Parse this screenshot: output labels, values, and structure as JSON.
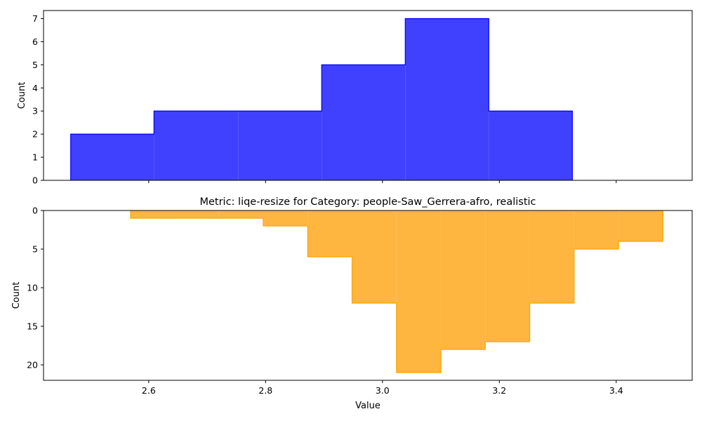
{
  "chart_data": [
    {
      "type": "histogram",
      "title": "",
      "xlabel": "",
      "ylabel": "Count",
      "xlim": [
        2.42,
        3.53
      ],
      "ylim": [
        0,
        7.35
      ],
      "x_inverted": false,
      "y_inverted": false,
      "show_x_tick_labels": false,
      "color": "#0000ff",
      "fill_color": "#4040ff",
      "xticks": [
        2.6,
        2.8,
        3.0,
        3.2,
        3.4
      ],
      "yticks": [
        0,
        1,
        2,
        3,
        4,
        5,
        6,
        7
      ],
      "ytick_labels": [
        "0",
        "1",
        "2",
        "3",
        "4",
        "5",
        "6",
        "7"
      ],
      "bin_edges": [
        2.4665,
        2.609,
        2.753,
        2.896,
        3.039,
        3.182,
        3.325
      ],
      "counts": [
        2,
        3,
        3,
        5,
        7,
        3
      ]
    },
    {
      "type": "histogram",
      "title": "Metric: liqe-resize for Category: people-Saw_Gerrera-afro, realistic",
      "xlabel": "Value",
      "ylabel": "Count",
      "xlim": [
        2.42,
        3.53
      ],
      "ylim": [
        0,
        22
      ],
      "x_inverted": false,
      "y_inverted": true,
      "show_x_tick_labels": true,
      "color": "#ffa500",
      "fill_color": "#ffb640",
      "xticks": [
        2.6,
        2.8,
        3.0,
        3.2,
        3.4
      ],
      "xtick_labels": [
        "2.6",
        "2.8",
        "3.0",
        "3.2",
        "3.4"
      ],
      "yticks": [
        0,
        5,
        10,
        15,
        20
      ],
      "ytick_labels": [
        "0",
        "5",
        "10",
        "15",
        "20"
      ],
      "bin_edges": [
        2.569,
        2.644,
        2.72,
        2.796,
        2.872,
        2.948,
        3.024,
        3.1,
        3.176,
        3.252,
        3.328,
        3.404,
        3.48
      ],
      "counts": [
        1,
        1,
        1,
        2,
        6,
        12,
        21,
        18,
        17,
        12,
        5,
        4
      ]
    }
  ]
}
